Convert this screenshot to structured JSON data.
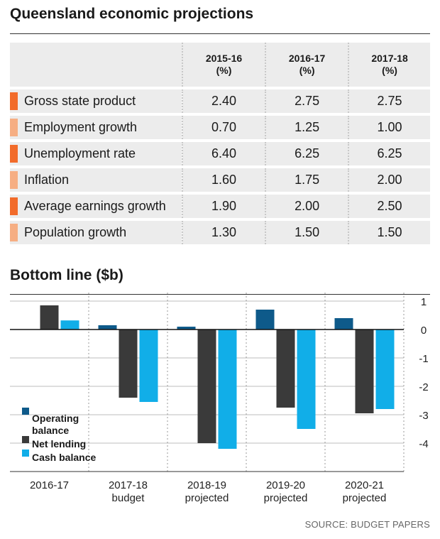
{
  "header": {
    "title": "Queensland economic projections"
  },
  "table": {
    "columns": [
      {
        "year": "2015-16",
        "unit": "(%)"
      },
      {
        "year": "2016-17",
        "unit": "(%)"
      },
      {
        "year": "2017-18",
        "unit": "(%)"
      }
    ],
    "rows": [
      {
        "label": "Gross state product",
        "values": [
          "2.40",
          "2.75",
          "2.75"
        ],
        "color": "#f26b2a"
      },
      {
        "label": "Employment growth",
        "values": [
          "0.70",
          "1.25",
          "1.00"
        ],
        "color": "#f6ae83"
      },
      {
        "label": "Unemployment rate",
        "values": [
          "6.40",
          "6.25",
          "6.25"
        ],
        "color": "#f26b2a"
      },
      {
        "label": "Inflation",
        "values": [
          "1.60",
          "1.75",
          "2.00"
        ],
        "color": "#f6ae83"
      },
      {
        "label": "Average earnings growth",
        "values": [
          "1.90",
          "2.00",
          "2.50"
        ],
        "color": "#f26b2a"
      },
      {
        "label": "Population growth",
        "values": [
          "1.30",
          "1.50",
          "1.50"
        ],
        "color": "#f6ae83"
      }
    ]
  },
  "chart_data": {
    "type": "bar",
    "title": "Bottom line ($b)",
    "categories": [
      [
        "2016-17"
      ],
      [
        "2017-18",
        "budget"
      ],
      [
        "2018-19",
        "projected"
      ],
      [
        "2019-20",
        "projected"
      ],
      [
        "2020-21",
        "projected"
      ]
    ],
    "series": [
      {
        "name": "Operating balance",
        "color": "#0e5a8a",
        "values": [
          null,
          0.15,
          0.1,
          0.7,
          0.4
        ]
      },
      {
        "name": "Net lending",
        "color": "#3a3a3a",
        "values": [
          0.85,
          -2.4,
          -4.0,
          -2.75,
          -2.95
        ]
      },
      {
        "name": "Cash balance",
        "color": "#11aee8",
        "values": [
          0.32,
          -2.55,
          -4.2,
          -3.5,
          -2.8
        ]
      }
    ],
    "yticks": [
      1,
      0,
      -1,
      -2,
      -3,
      -4
    ],
    "ylim": [
      -5,
      1.3
    ],
    "grid": true,
    "legend_position": "bottom-left"
  },
  "footer": {
    "source": "SOURCE: BUDGET PAPERS"
  }
}
